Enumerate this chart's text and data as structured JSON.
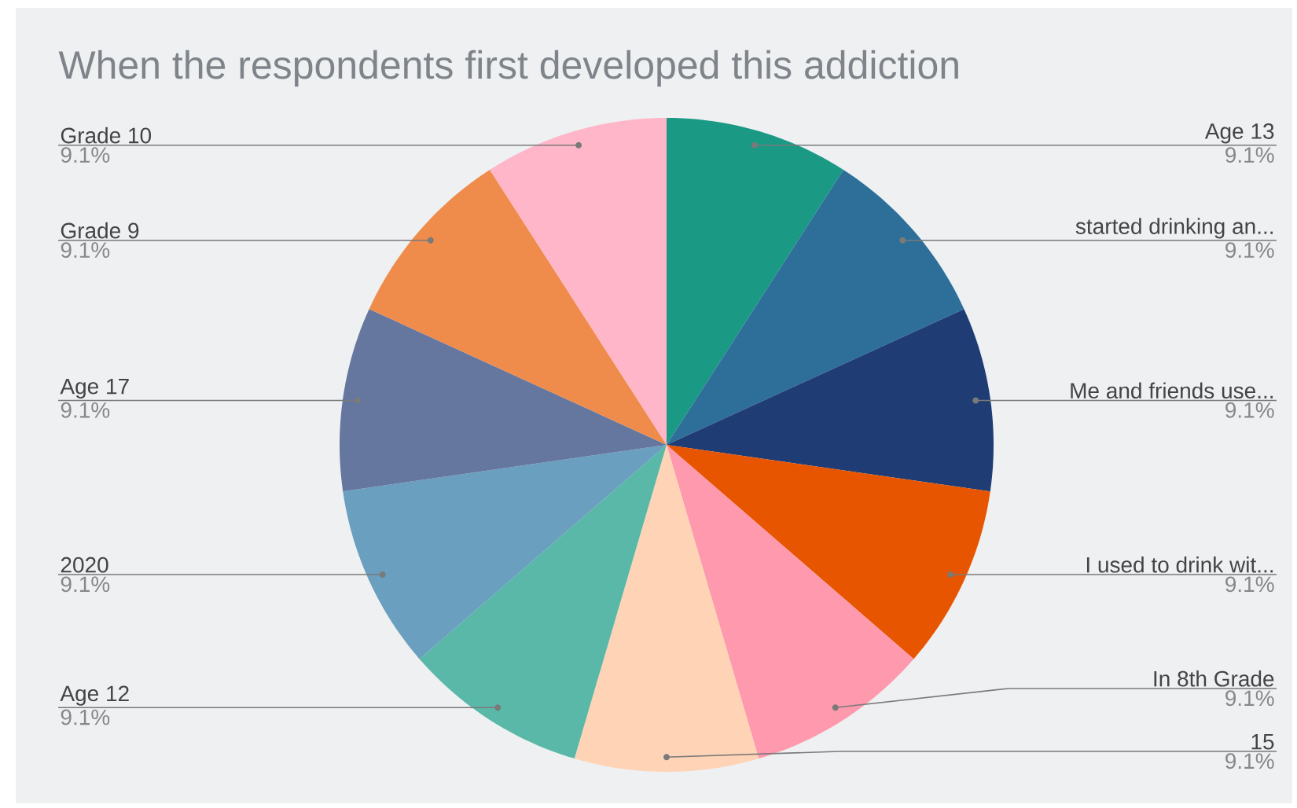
{
  "chart_data": {
    "type": "pie",
    "title": "When the respondents first developed this addiction",
    "categories": [
      "Age 13",
      "started drinking an...",
      "Me and friends use...",
      "I used to drink wit...",
      "In 8th Grade",
      "15",
      "Age 12",
      "2020",
      "Age 17",
      "Grade 9",
      "Grade 10"
    ],
    "values": [
      9.1,
      9.1,
      9.1,
      9.1,
      9.1,
      9.1,
      9.1,
      9.1,
      9.1,
      9.1,
      9.1
    ],
    "value_labels": [
      "9.1%",
      "9.1%",
      "9.1%",
      "9.1%",
      "9.1%",
      "9.1%",
      "9.1%",
      "9.1%",
      "9.1%",
      "9.1%",
      "9.1%"
    ],
    "colors": [
      "#1a9985",
      "#2e6f9a",
      "#1f3d74",
      "#e85500",
      "#ff99ad",
      "#ffd3b5",
      "#5ab8a8",
      "#6a9fbf",
      "#65779f",
      "#ef8b4b",
      "#ffb6c8"
    ]
  }
}
